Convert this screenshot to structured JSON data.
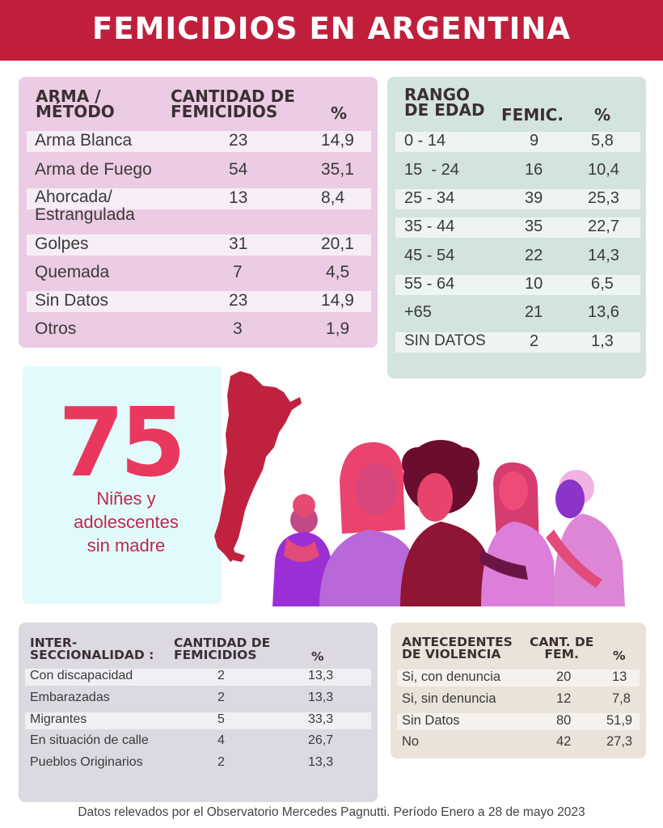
{
  "title": "FEMICIDIOS EN ARGENTINA",
  "arma": {
    "headers": [
      "ARMA /",
      "MÉTODO",
      "CANTIDAD DE",
      "FEMICIDIOS",
      "%"
    ],
    "rows": [
      {
        "label": "Arma Blanca",
        "cant": "23",
        "pct": "14,9"
      },
      {
        "label": "Arma de Fuego",
        "cant": "54",
        "pct": "35,1"
      },
      {
        "label": "Ahorcada/",
        "label2": "Estrangulada",
        "cant": "13",
        "pct": "8,4"
      },
      {
        "label": "Golpes",
        "cant": "31",
        "pct": "20,1"
      },
      {
        "label": "Quemada",
        "cant": "7",
        "pct": "4,5"
      },
      {
        "label": "Sin Datos",
        "cant": "23",
        "pct": "14,9"
      },
      {
        "label": "Otros",
        "cant": "3",
        "pct": "1,9"
      }
    ]
  },
  "edad": {
    "headers": [
      "RANGO",
      "DE EDAD",
      "FEMIC.",
      "%"
    ],
    "rows": [
      {
        "label": "0 - 14",
        "cant": "9",
        "pct": "5,8"
      },
      {
        "label": "15  - 24",
        "cant": "16",
        "pct": "10,4"
      },
      {
        "label": "25 - 34",
        "cant": "39",
        "pct": "25,3"
      },
      {
        "label": "35 - 44",
        "cant": "35",
        "pct": "22,7"
      },
      {
        "label": "45 - 54",
        "cant": "22",
        "pct": "14,3"
      },
      {
        "label": "55 - 64",
        "cant": "10",
        "pct": "6,5"
      },
      {
        "label": "+65",
        "cant": "21",
        "pct": "13,6"
      },
      {
        "label": "SIN DATOS",
        "cant": "2",
        "pct": "1,3"
      }
    ]
  },
  "huerfanos": {
    "number": "75",
    "lines": [
      "Niñes y",
      "adolescentes",
      "sin madre"
    ]
  },
  "inter": {
    "headers": [
      "INTER-",
      "SECCIONALIDAD :",
      "CANTIDAD DE",
      "FEMICIDIOS",
      "%"
    ],
    "rows": [
      {
        "label": "Con discapacidad",
        "cant": "2",
        "pct": "13,3"
      },
      {
        "label": "Embarazadas",
        "cant": "2",
        "pct": "13,3"
      },
      {
        "label": "Migrantes",
        "cant": "5",
        "pct": "33,3"
      },
      {
        "label": "En situación de calle",
        "cant": "4",
        "pct": "26,7"
      },
      {
        "label": "Pueblos Originarios",
        "cant": "2",
        "pct": "13,3"
      }
    ]
  },
  "ante": {
    "headers": [
      "ANTECEDENTES",
      "DE VIOLENCIA",
      "CANT. DE",
      "FEM.",
      "%"
    ],
    "rows": [
      {
        "label": "Si, con denuncia",
        "cant": "20",
        "pct": "13"
      },
      {
        "label": "Si, sin denuncia",
        "cant": "12",
        "pct": "7,8"
      },
      {
        "label": "Sin Datos",
        "cant": "80",
        "pct": "51,9"
      },
      {
        "label": "No",
        "cant": "42",
        "pct": "27,3"
      }
    ]
  },
  "footer": "Datos relevados por el Observatorio Mercedes Pagnutti. Período Enero a 28 de mayo 2023",
  "colors": {
    "banner": "#c01f3c",
    "accent": "#e9385e",
    "map": "#c0213f"
  },
  "icons": [
    "argentina-map-icon",
    "women-group-illustration"
  ]
}
